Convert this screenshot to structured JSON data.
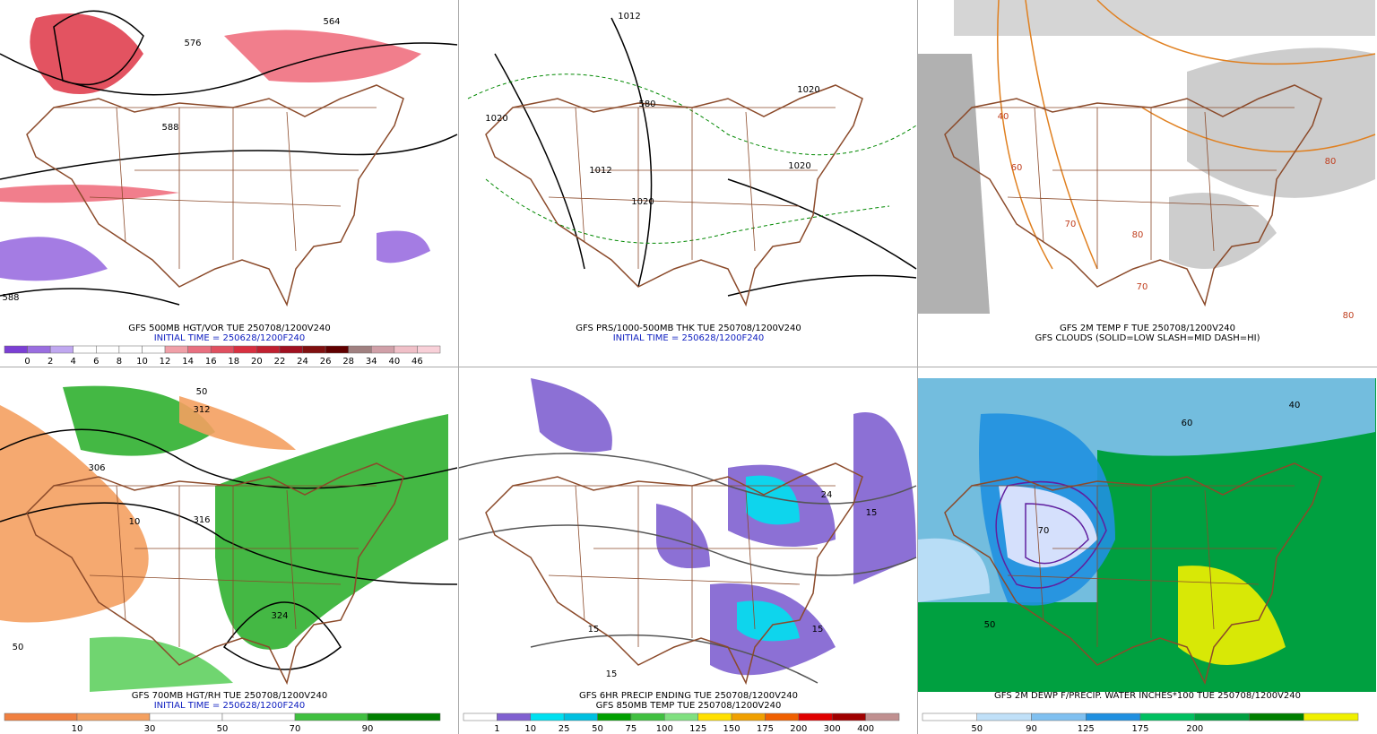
{
  "panels": [
    {
      "caption": [
        "GFS 500MB HGT/VOR TUE 250708/1200V240",
        "INITIAL TIME = 250628/1200F240"
      ],
      "colorbar": [
        "0",
        "2",
        "4",
        "6",
        "8",
        "10",
        "12",
        "14",
        "16",
        "18",
        "20",
        "22",
        "24",
        "26",
        "28",
        "34",
        "40",
        "46"
      ],
      "map_labels": [
        "564",
        "576",
        "588",
        "588"
      ]
    },
    {
      "caption": [
        "GFS PRS/1000-500MB THK TUE 250708/1200V240",
        "INITIAL TIME = 250628/1200F240"
      ],
      "colorbar": [],
      "map_labels": [
        "1012",
        "1020",
        "1012",
        "1020",
        "1020",
        "1020",
        "580"
      ]
    },
    {
      "caption": [
        "GFS 2M TEMP F TUE 250708/1200V240",
        "GFS CLOUDS (SOLID=LOW SLASH=MID DASH=HI)"
      ],
      "colorbar": [],
      "map_labels": [
        "40",
        "60",
        "70",
        "80",
        "80",
        "70",
        "80"
      ]
    },
    {
      "caption": [
        "GFS 700MB HGT/RH TUE 250708/1200V240",
        "INITIAL TIME = 250628/1200F240"
      ],
      "colorbar": [
        "10",
        "30",
        "50",
        "70",
        "90"
      ],
      "map_labels": [
        "306",
        "312",
        "316",
        "324",
        "50",
        "10",
        "50"
      ]
    },
    {
      "caption": [
        "GFS 6HR PRECIP ENDING TUE 250708/1200V240",
        "GFS 850MB TEMP TUE 250708/1200V240"
      ],
      "colorbar": [
        "1",
        "10",
        "25",
        "50",
        "75",
        "100",
        "125",
        "150",
        "175",
        "200",
        "300",
        "400"
      ],
      "map_labels": [
        "15",
        "15",
        "15",
        "24",
        "15"
      ]
    },
    {
      "caption": [
        "GFS 2M DEWP F/PRECIP. WATER INCHES*100 TUE 250708/1200V240"
      ],
      "colorbar": [
        "50",
        "90",
        "125",
        "175",
        "200"
      ],
      "map_labels": [
        "50",
        "60",
        "70",
        "40"
      ]
    }
  ]
}
